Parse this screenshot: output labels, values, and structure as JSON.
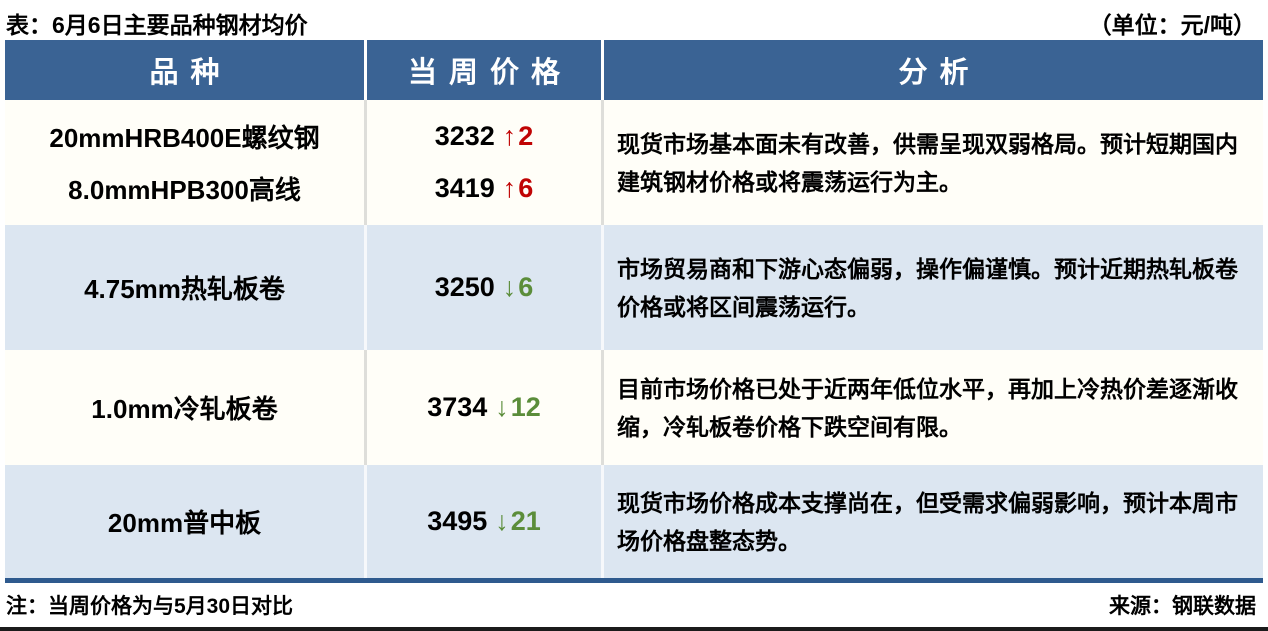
{
  "title": "表：6月6日主要品种钢材均价",
  "unit_label": "（单位：元/吨）",
  "table": {
    "headers": {
      "variety": "品种",
      "price": "当周价格",
      "analysis": "分析"
    },
    "rows": [
      {
        "products": [
          {
            "name": "20mmHRB400E螺纹钢",
            "price": "3232",
            "arrow": "↑",
            "change": "2",
            "direction": "up"
          },
          {
            "name": "8.0mmHPB300高线",
            "price": "3419",
            "arrow": "↑",
            "change": "6",
            "direction": "up"
          }
        ],
        "analysis": "现货市场基本面未有改善，供需呈现双弱格局。预计短期国内建筑钢材价格或将震荡运行为主。"
      },
      {
        "products": [
          {
            "name": "4.75mm热轧板卷",
            "price": "3250",
            "arrow": "↓",
            "change": "6",
            "direction": "down"
          }
        ],
        "analysis": "市场贸易商和下游心态偏弱，操作偏谨慎。预计近期热轧板卷价格或将区间震荡运行。"
      },
      {
        "products": [
          {
            "name": "1.0mm冷轧板卷",
            "price": "3734",
            "arrow": "↓",
            "change": "12",
            "direction": "down"
          }
        ],
        "analysis": "目前市场价格已处于近两年低位水平，再加上冷热价差逐渐收缩，冷轧板卷价格下跌空间有限。"
      },
      {
        "products": [
          {
            "name": "20mm普中板",
            "price": "3495",
            "arrow": "↓",
            "change": "21",
            "direction": "down"
          }
        ],
        "analysis": "现货市场价格成本支撑尚在，但受需求偏弱影响，预计本周市场价格盘整态势。"
      }
    ]
  },
  "footer": {
    "note": "注：当周价格为与5月30日对比",
    "source": "来源：钢联数据"
  },
  "colors": {
    "header_bg": "#3A6394",
    "alt_row_bg": "#DCE6F1",
    "up_red": "#C00404",
    "down_green": "#5B8D3A",
    "table_bottom_border": "#2E5A8E"
  },
  "chart_data": {
    "type": "table",
    "title": "表：6月6日主要品种钢材均价",
    "unit": "元/吨",
    "columns": [
      "品种",
      "当周价格",
      "分析"
    ],
    "price_changes": [
      {
        "variety": "20mmHRB400E螺纹钢",
        "price": 3232,
        "change": 2
      },
      {
        "variety": "8.0mmHPB300高线",
        "price": 3419,
        "change": 6
      },
      {
        "variety": "4.75mm热轧板卷",
        "price": 3250,
        "change": -6
      },
      {
        "variety": "1.0mm冷轧板卷",
        "price": 3734,
        "change": -12
      },
      {
        "variety": "20mm普中板",
        "price": 3495,
        "change": -21
      }
    ]
  }
}
